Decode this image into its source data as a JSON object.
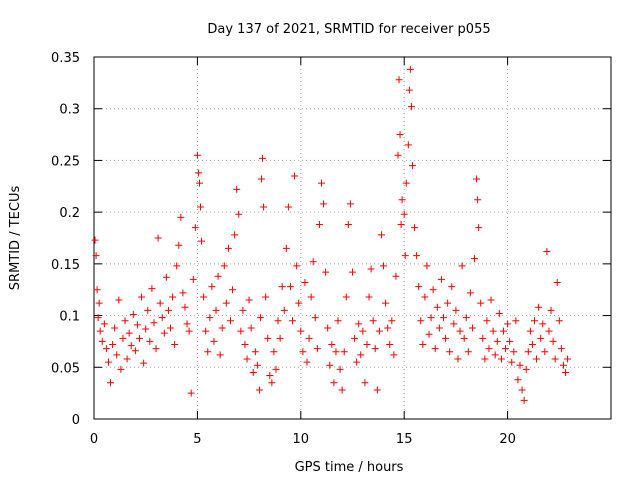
{
  "chart_data": {
    "type": "scatter",
    "title": "Day 137 of 2021, SRMTID for receiver p055",
    "xlabel": "GPS time / hours",
    "ylabel": "SRMTID / TECUs",
    "xlim": [
      0,
      25
    ],
    "ylim": [
      0,
      0.35
    ],
    "xticks": [
      0,
      5,
      10,
      15,
      20
    ],
    "xtick_labels": [
      "0",
      "5",
      "10",
      "15",
      "20"
    ],
    "yticks": [
      0,
      0.05,
      0.1,
      0.15,
      0.2,
      0.25,
      0.3,
      0.35
    ],
    "ytick_labels": [
      "0",
      "0.05",
      "0.1",
      "0.15",
      "0.2",
      "0.25",
      "0.3",
      "0.35"
    ],
    "grid": true,
    "marker": "+",
    "series": [
      {
        "name": "SRMTID",
        "color": "#ff0000",
        "points": [
          [
            0.05,
            0.173
          ],
          [
            0.1,
            0.158
          ],
          [
            0.15,
            0.125
          ],
          [
            0.2,
            0.098
          ],
          [
            0.25,
            0.112
          ],
          [
            0.3,
            0.085
          ],
          [
            0.4,
            0.075
          ],
          [
            0.5,
            0.092
          ],
          [
            0.6,
            0.068
          ],
          [
            0.7,
            0.055
          ],
          [
            0.8,
            0.035
          ],
          [
            0.9,
            0.072
          ],
          [
            1.0,
            0.088
          ],
          [
            1.1,
            0.062
          ],
          [
            1.2,
            0.115
          ],
          [
            1.3,
            0.048
          ],
          [
            1.4,
            0.078
          ],
          [
            1.5,
            0.095
          ],
          [
            1.6,
            0.058
          ],
          [
            1.7,
            0.083
          ],
          [
            1.8,
            0.071
          ],
          [
            1.9,
            0.101
          ],
          [
            2.0,
            0.066
          ],
          [
            2.1,
            0.091
          ],
          [
            2.2,
            0.078
          ],
          [
            2.3,
            0.118
          ],
          [
            2.4,
            0.054
          ],
          [
            2.5,
            0.087
          ],
          [
            2.6,
            0.105
          ],
          [
            2.7,
            0.075
          ],
          [
            2.8,
            0.126
          ],
          [
            2.9,
            0.093
          ],
          [
            3.0,
            0.068
          ],
          [
            3.1,
            0.175
          ],
          [
            3.2,
            0.112
          ],
          [
            3.3,
            0.098
          ],
          [
            3.4,
            0.083
          ],
          [
            3.5,
            0.137
          ],
          [
            3.6,
            0.105
          ],
          [
            3.7,
            0.088
          ],
          [
            3.8,
            0.118
          ],
          [
            3.9,
            0.072
          ],
          [
            4.0,
            0.148
          ],
          [
            4.1,
            0.168
          ],
          [
            4.2,
            0.195
          ],
          [
            4.3,
            0.122
          ],
          [
            4.4,
            0.108
          ],
          [
            4.5,
            0.092
          ],
          [
            4.6,
            0.085
          ],
          [
            4.7,
            0.025
          ],
          [
            4.8,
            0.135
          ],
          [
            4.9,
            0.185
          ],
          [
            5.0,
            0.255
          ],
          [
            5.05,
            0.238
          ],
          [
            5.1,
            0.228
          ],
          [
            5.15,
            0.205
          ],
          [
            5.2,
            0.172
          ],
          [
            5.3,
            0.118
          ],
          [
            5.4,
            0.085
          ],
          [
            5.5,
            0.065
          ],
          [
            5.6,
            0.098
          ],
          [
            5.7,
            0.128
          ],
          [
            5.8,
            0.075
          ],
          [
            5.9,
            0.105
          ],
          [
            6.0,
            0.138
          ],
          [
            6.1,
            0.062
          ],
          [
            6.2,
            0.088
          ],
          [
            6.3,
            0.148
          ],
          [
            6.4,
            0.112
          ],
          [
            6.5,
            0.165
          ],
          [
            6.6,
            0.095
          ],
          [
            6.7,
            0.125
          ],
          [
            6.8,
            0.178
          ],
          [
            6.9,
            0.222
          ],
          [
            7.0,
            0.198
          ],
          [
            7.1,
            0.085
          ],
          [
            7.2,
            0.105
          ],
          [
            7.3,
            0.072
          ],
          [
            7.4,
            0.058
          ],
          [
            7.5,
            0.115
          ],
          [
            7.6,
            0.088
          ],
          [
            7.7,
            0.045
          ],
          [
            7.8,
            0.065
          ],
          [
            7.9,
            0.052
          ],
          [
            8.0,
            0.028
          ],
          [
            8.05,
            0.098
          ],
          [
            8.1,
            0.232
          ],
          [
            8.15,
            0.252
          ],
          [
            8.2,
            0.205
          ],
          [
            8.3,
            0.118
          ],
          [
            8.4,
            0.078
          ],
          [
            8.5,
            0.042
          ],
          [
            8.6,
            0.035
          ],
          [
            8.7,
            0.065
          ],
          [
            8.8,
            0.048
          ],
          [
            8.9,
            0.095
          ],
          [
            9.0,
            0.078
          ],
          [
            9.1,
            0.128
          ],
          [
            9.2,
            0.105
          ],
          [
            9.3,
            0.165
          ],
          [
            9.4,
            0.205
          ],
          [
            9.5,
            0.128
          ],
          [
            9.6,
            0.095
          ],
          [
            9.7,
            0.235
          ],
          [
            9.8,
            0.148
          ],
          [
            9.9,
            0.112
          ],
          [
            10.0,
            0.085
          ],
          [
            10.1,
            0.065
          ],
          [
            10.2,
            0.132
          ],
          [
            10.3,
            0.055
          ],
          [
            10.4,
            0.078
          ],
          [
            10.5,
            0.118
          ],
          [
            10.6,
            0.152
          ],
          [
            10.7,
            0.098
          ],
          [
            10.8,
            0.068
          ],
          [
            10.9,
            0.188
          ],
          [
            11.0,
            0.228
          ],
          [
            11.1,
            0.208
          ],
          [
            11.2,
            0.142
          ],
          [
            11.3,
            0.088
          ],
          [
            11.4,
            0.052
          ],
          [
            11.5,
            0.072
          ],
          [
            11.6,
            0.035
          ],
          [
            11.7,
            0.065
          ],
          [
            11.8,
            0.095
          ],
          [
            11.9,
            0.048
          ],
          [
            12.0,
            0.028
          ],
          [
            12.1,
            0.065
          ],
          [
            12.2,
            0.118
          ],
          [
            12.3,
            0.188
          ],
          [
            12.4,
            0.208
          ],
          [
            12.5,
            0.142
          ],
          [
            12.6,
            0.078
          ],
          [
            12.7,
            0.055
          ],
          [
            12.8,
            0.092
          ],
          [
            12.9,
            0.062
          ],
          [
            13.0,
            0.085
          ],
          [
            13.1,
            0.035
          ],
          [
            13.2,
            0.072
          ],
          [
            13.3,
            0.118
          ],
          [
            13.4,
            0.145
          ],
          [
            13.5,
            0.095
          ],
          [
            13.6,
            0.068
          ],
          [
            13.7,
            0.028
          ],
          [
            13.8,
            0.085
          ],
          [
            13.9,
            0.178
          ],
          [
            14.0,
            0.148
          ],
          [
            14.1,
            0.112
          ],
          [
            14.2,
            0.088
          ],
          [
            14.3,
            0.072
          ],
          [
            14.4,
            0.095
          ],
          [
            14.5,
            0.062
          ],
          [
            14.6,
            0.138
          ],
          [
            14.7,
            0.255
          ],
          [
            14.75,
            0.328
          ],
          [
            14.8,
            0.275
          ],
          [
            14.85,
            0.188
          ],
          [
            14.9,
            0.212
          ],
          [
            15.0,
            0.198
          ],
          [
            15.05,
            0.158
          ],
          [
            15.1,
            0.228
          ],
          [
            15.2,
            0.265
          ],
          [
            15.25,
            0.318
          ],
          [
            15.3,
            0.338
          ],
          [
            15.35,
            0.302
          ],
          [
            15.4,
            0.245
          ],
          [
            15.5,
            0.185
          ],
          [
            15.6,
            0.158
          ],
          [
            15.7,
            0.128
          ],
          [
            15.8,
            0.095
          ],
          [
            15.9,
            0.072
          ],
          [
            16.0,
            0.118
          ],
          [
            16.1,
            0.148
          ],
          [
            16.2,
            0.082
          ],
          [
            16.3,
            0.098
          ],
          [
            16.4,
            0.125
          ],
          [
            16.5,
            0.068
          ],
          [
            16.6,
            0.108
          ],
          [
            16.7,
            0.088
          ],
          [
            16.8,
            0.135
          ],
          [
            16.9,
            0.098
          ],
          [
            17.0,
            0.078
          ],
          [
            17.1,
            0.112
          ],
          [
            17.2,
            0.065
          ],
          [
            17.3,
            0.128
          ],
          [
            17.4,
            0.092
          ],
          [
            17.5,
            0.105
          ],
          [
            17.6,
            0.058
          ],
          [
            17.7,
            0.085
          ],
          [
            17.8,
            0.148
          ],
          [
            17.9,
            0.078
          ],
          [
            18.0,
            0.098
          ],
          [
            18.1,
            0.065
          ],
          [
            18.2,
            0.122
          ],
          [
            18.3,
            0.088
          ],
          [
            18.4,
            0.155
          ],
          [
            18.5,
            0.232
          ],
          [
            18.55,
            0.212
          ],
          [
            18.6,
            0.185
          ],
          [
            18.7,
            0.112
          ],
          [
            18.8,
            0.078
          ],
          [
            18.9,
            0.058
          ],
          [
            19.0,
            0.095
          ],
          [
            19.1,
            0.068
          ],
          [
            19.2,
            0.115
          ],
          [
            19.3,
            0.085
          ],
          [
            19.4,
            0.062
          ],
          [
            19.5,
            0.075
          ],
          [
            19.6,
            0.102
          ],
          [
            19.7,
            0.058
          ],
          [
            19.8,
            0.085
          ],
          [
            19.9,
            0.068
          ],
          [
            20.0,
            0.092
          ],
          [
            20.1,
            0.075
          ],
          [
            20.2,
            0.055
          ],
          [
            20.3,
            0.065
          ],
          [
            20.4,
            0.095
          ],
          [
            20.5,
            0.038
          ],
          [
            20.6,
            0.052
          ],
          [
            20.7,
            0.028
          ],
          [
            20.8,
            0.018
          ],
          [
            20.9,
            0.048
          ],
          [
            21.0,
            0.065
          ],
          [
            21.1,
            0.085
          ],
          [
            21.2,
            0.072
          ],
          [
            21.3,
            0.095
          ],
          [
            21.4,
            0.058
          ],
          [
            21.5,
            0.108
          ],
          [
            21.6,
            0.078
          ],
          [
            21.7,
            0.092
          ],
          [
            21.8,
            0.065
          ],
          [
            21.9,
            0.162
          ],
          [
            22.0,
            0.085
          ],
          [
            22.1,
            0.105
          ],
          [
            22.2,
            0.075
          ],
          [
            22.3,
            0.058
          ],
          [
            22.4,
            0.132
          ],
          [
            22.5,
            0.095
          ],
          [
            22.6,
            0.068
          ],
          [
            22.7,
            0.052
          ],
          [
            22.8,
            0.045
          ],
          [
            22.9,
            0.058
          ]
        ]
      }
    ]
  }
}
